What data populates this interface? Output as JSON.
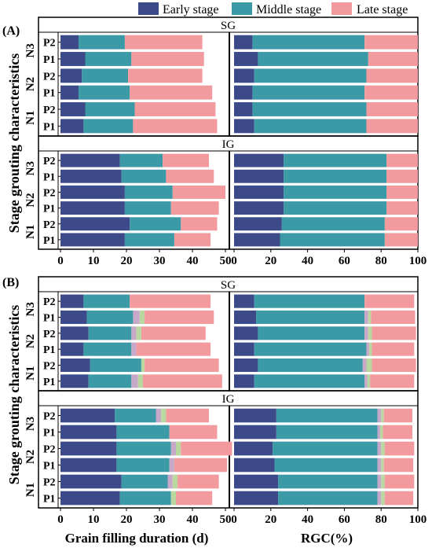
{
  "colors": {
    "early": "#3d4a8a",
    "middle": "#3b9aa6",
    "late": "#f39a9e",
    "transition": "#c8a8c8",
    "transition2": "#b9d79f",
    "frame": "#000000"
  },
  "legend": {
    "early": "Early stage",
    "middle": "Middle stage",
    "late": "Late stage"
  },
  "panel_labels": {
    "a": "(A)",
    "b": "(B)"
  },
  "group_titles": {
    "sg": "SG",
    "ig": "IG"
  },
  "ylabel": "Stage grouting characteristics",
  "xlabel_left": "Grain filling duration (d)",
  "xlabel_right": "RGC(%)",
  "nitrogen_labels": [
    "N3",
    "N2",
    "N1"
  ],
  "row_labels": [
    "P2",
    "P1",
    "P2",
    "P1",
    "P2",
    "P1"
  ],
  "chart_data": [
    {
      "type": "bar",
      "orientation": "horizontal",
      "stacked": true,
      "panel": "A",
      "left_axis": {
        "xlim": [
          0,
          50
        ],
        "ticks": [
          0,
          10,
          20,
          30,
          40,
          50
        ],
        "xlabel": "Grain filling duration (d)"
      },
      "right_axis": {
        "xlim": [
          0,
          100
        ],
        "ticks": [
          0,
          20,
          40,
          60,
          80,
          100
        ],
        "xlabel": "RGC(%)"
      },
      "series_names": [
        "Early stage",
        "Middle stage",
        "Late stage"
      ],
      "groups": [
        {
          "name": "SG",
          "categories": [
            "N3 P2",
            "N3 P1",
            "N2 P2",
            "N2 P1",
            "N1 P2",
            "N1 P1"
          ],
          "duration": [
            [
              5.5,
              14,
              23.5
            ],
            [
              7.5,
              14,
              22
            ],
            [
              6.5,
              14,
              22.5
            ],
            [
              5.5,
              15.5,
              25
            ],
            [
              7.5,
              15,
              24.5
            ],
            [
              7,
              15,
              25.5
            ]
          ],
          "rgc": [
            [
              10,
              61,
              29
            ],
            [
              13,
              60,
              27
            ],
            [
              11,
              61,
              28
            ],
            [
              10,
              61,
              29
            ],
            [
              10,
              62,
              28
            ],
            [
              11,
              61,
              28
            ]
          ]
        },
        {
          "name": "IG",
          "categories": [
            "N3 P2",
            "N3 P1",
            "N2 P2",
            "N2 P1",
            "N1 P2",
            "N1 P1"
          ],
          "duration": [
            [
              18,
              13,
              14
            ],
            [
              18.5,
              13.5,
              14.5
            ],
            [
              19.5,
              14.5,
              16
            ],
            [
              19.5,
              14,
              14.5
            ],
            [
              21,
              15.5,
              11
            ],
            [
              19.5,
              15,
              11
            ]
          ],
          "rgc": [
            [
              27,
              56,
              17
            ],
            [
              27,
              56,
              17
            ],
            [
              27,
              56,
              17
            ],
            [
              27,
              56,
              17
            ],
            [
              26,
              56,
              18
            ],
            [
              25,
              57,
              18
            ]
          ]
        }
      ]
    },
    {
      "type": "bar",
      "orientation": "horizontal",
      "stacked": true,
      "panel": "B",
      "left_axis": {
        "xlim": [
          0,
          50
        ],
        "ticks": [
          0,
          10,
          20,
          30,
          40,
          50
        ],
        "xlabel": "Grain filling duration (d)"
      },
      "right_axis": {
        "xlim": [
          0,
          100
        ],
        "ticks": [
          0,
          20,
          40,
          60,
          80,
          100
        ],
        "xlabel": "RGC(%)"
      },
      "series_names": [
        "Early stage",
        "Middle stage",
        "Late stage"
      ],
      "groups": [
        {
          "name": "SG",
          "categories": [
            "N3 P2",
            "N3 P1",
            "N2 P2",
            "N2 P1",
            "N1 P2",
            "N1 P1"
          ],
          "duration": [
            [
              7,
              14,
              0,
              0,
              24.5
            ],
            [
              8,
              14,
              2,
              1.5,
              21
            ],
            [
              8.5,
              13,
              1.5,
              1.5,
              19.5
            ],
            [
              7,
              14.5,
              1.5,
              0,
              22.5
            ],
            [
              9,
              15.5,
              0,
              1,
              22.5
            ],
            [
              8.5,
              13,
              2,
              1.5,
              24
            ]
          ],
          "rgc": [
            [
              11,
              60,
              0,
              0,
              27
            ],
            [
              12,
              59,
              2,
              1.5,
              24
            ],
            [
              13,
              58,
              2,
              2,
              24
            ],
            [
              11,
              61,
              1.5,
              1.5,
              23
            ],
            [
              13,
              57,
              2,
              3,
              24
            ],
            [
              11,
              60,
              1.5,
              1.5,
              24
            ]
          ]
        },
        {
          "name": "IG",
          "categories": [
            "N3 P2",
            "N3 P1",
            "N2 P2",
            "N2 P1",
            "N1 P2",
            "N1 P1"
          ],
          "duration": [
            [
              16.5,
              12.5,
              1.5,
              1.5,
              13
            ],
            [
              17,
              16,
              0,
              0,
              14.5
            ],
            [
              17,
              16.5,
              1.5,
              1.5,
              15.5
            ],
            [
              17,
              16,
              1.5,
              0,
              16
            ],
            [
              18.5,
              14,
              1.5,
              1.5,
              12.5
            ],
            [
              18,
              15.5,
              0,
              1.5,
              11
            ]
          ],
          "rgc": [
            [
              23,
              55,
              2,
              1.5,
              15.5
            ],
            [
              23,
              55,
              1.5,
              1.5,
              16
            ],
            [
              21,
              57,
              2,
              2,
              16
            ],
            [
              22,
              56,
              2,
              1.5,
              16
            ],
            [
              24,
              54,
              2,
              2,
              16
            ],
            [
              24,
              54,
              2,
              2,
              15.5
            ]
          ]
        }
      ]
    }
  ]
}
